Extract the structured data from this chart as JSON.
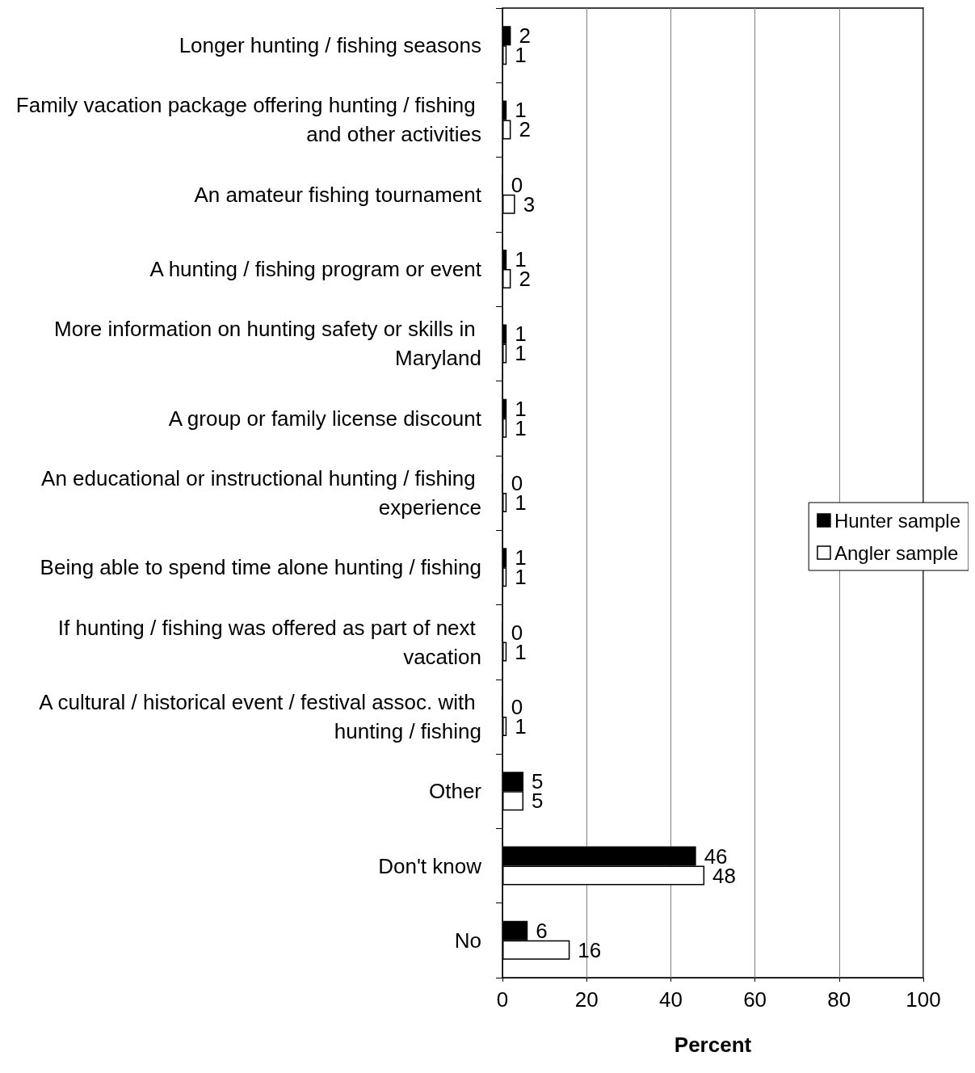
{
  "chart_data": {
    "type": "bar",
    "orientation": "horizontal",
    "xlabel": "Percent",
    "categories": [
      "Longer hunting / fishing seasons",
      "Family vacation package offering hunting / fishing and other activities",
      "An amateur fishing tournament",
      "A hunting / fishing program or event",
      "More information on hunting safety or skills in Maryland",
      "A group or family license discount",
      "An educational or instructional hunting / fishing experience",
      "Being able to spend time alone hunting / fishing",
      "If hunting / fishing was offered as part of next vacation",
      "A cultural / historical event / festival assoc. with hunting / fishing",
      "Other",
      "Don't know",
      "No"
    ],
    "series": [
      {
        "name": "Hunter sample",
        "color": "#000000",
        "values": [
          2,
          1,
          0,
          1,
          1,
          1,
          0,
          1,
          0,
          0,
          5,
          46,
          6
        ]
      },
      {
        "name": "Angler sample",
        "color": "#ffffff",
        "values": [
          1,
          2,
          3,
          2,
          1,
          1,
          1,
          1,
          1,
          1,
          5,
          48,
          16
        ]
      }
    ],
    "xlim": [
      0,
      100
    ],
    "xticks": [
      0,
      20,
      40,
      60,
      80,
      100
    ],
    "grid": "x",
    "legend": "right",
    "data_labels": true
  }
}
